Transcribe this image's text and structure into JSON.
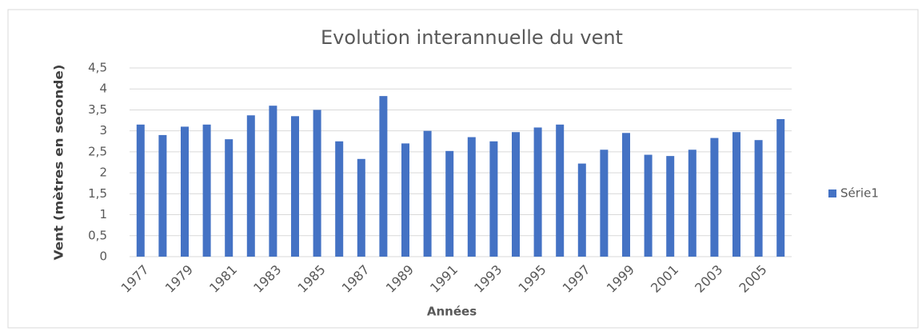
{
  "chart_data": {
    "type": "bar",
    "title": "Evolution interannuelle du vent",
    "x_label": "Années",
    "y_label": "Vent (mètres en seconde)",
    "categories": [
      "1977",
      null,
      "1979",
      null,
      "1981",
      null,
      "1983",
      null,
      "1985",
      null,
      "1987",
      null,
      "1989",
      null,
      "1991",
      null,
      "1993",
      null,
      "1995",
      null,
      "1997",
      null,
      "1999",
      null,
      "2001",
      null,
      "2003",
      null,
      "2005",
      null
    ],
    "series": [
      {
        "name": "Série1",
        "color": "#4472c4",
        "values": [
          3.15,
          2.9,
          3.1,
          3.15,
          2.8,
          3.37,
          3.6,
          3.35,
          3.5,
          2.75,
          2.33,
          3.83,
          2.7,
          3.0,
          2.52,
          2.85,
          2.75,
          2.97,
          3.08,
          3.15,
          2.22,
          2.55,
          2.95,
          2.43,
          2.4,
          2.55,
          2.83,
          2.97,
          2.78,
          3.28
        ]
      }
    ],
    "ylim": [
      0,
      4.5
    ],
    "yticks": [
      0,
      {
        "value": 0.5,
        "label": "0,5"
      },
      1,
      {
        "value": 1.5,
        "label": "1,5"
      },
      2,
      {
        "value": 2.5,
        "label": "2,5"
      },
      3,
      {
        "value": 3.5,
        "label": "3,5"
      },
      4,
      {
        "value": 4.5,
        "label": "4,5"
      }
    ],
    "grid": true,
    "legend": "right"
  }
}
